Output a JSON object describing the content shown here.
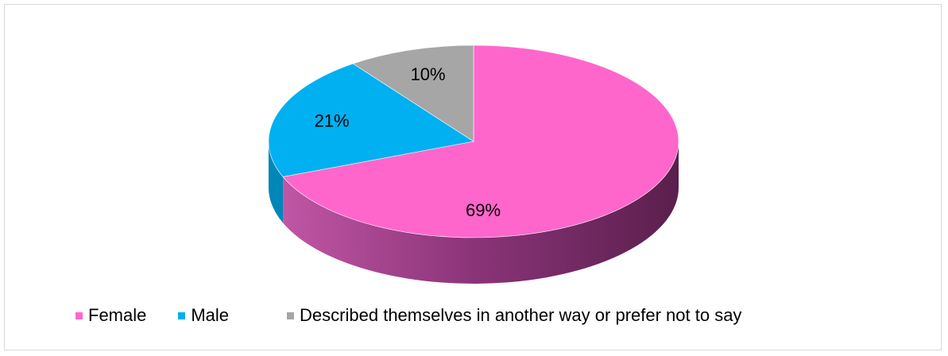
{
  "chart_data": {
    "type": "pie",
    "style": "3d",
    "categories": [
      "Female",
      "Male",
      "Described themselves in another way or prefer not to say"
    ],
    "values": [
      69,
      21,
      10
    ],
    "data_labels": [
      "69%",
      "21%",
      "10%"
    ],
    "colors": [
      "#FF66CC",
      "#00B0F0",
      "#A6A6A6"
    ],
    "legend_position": "bottom",
    "title": ""
  }
}
